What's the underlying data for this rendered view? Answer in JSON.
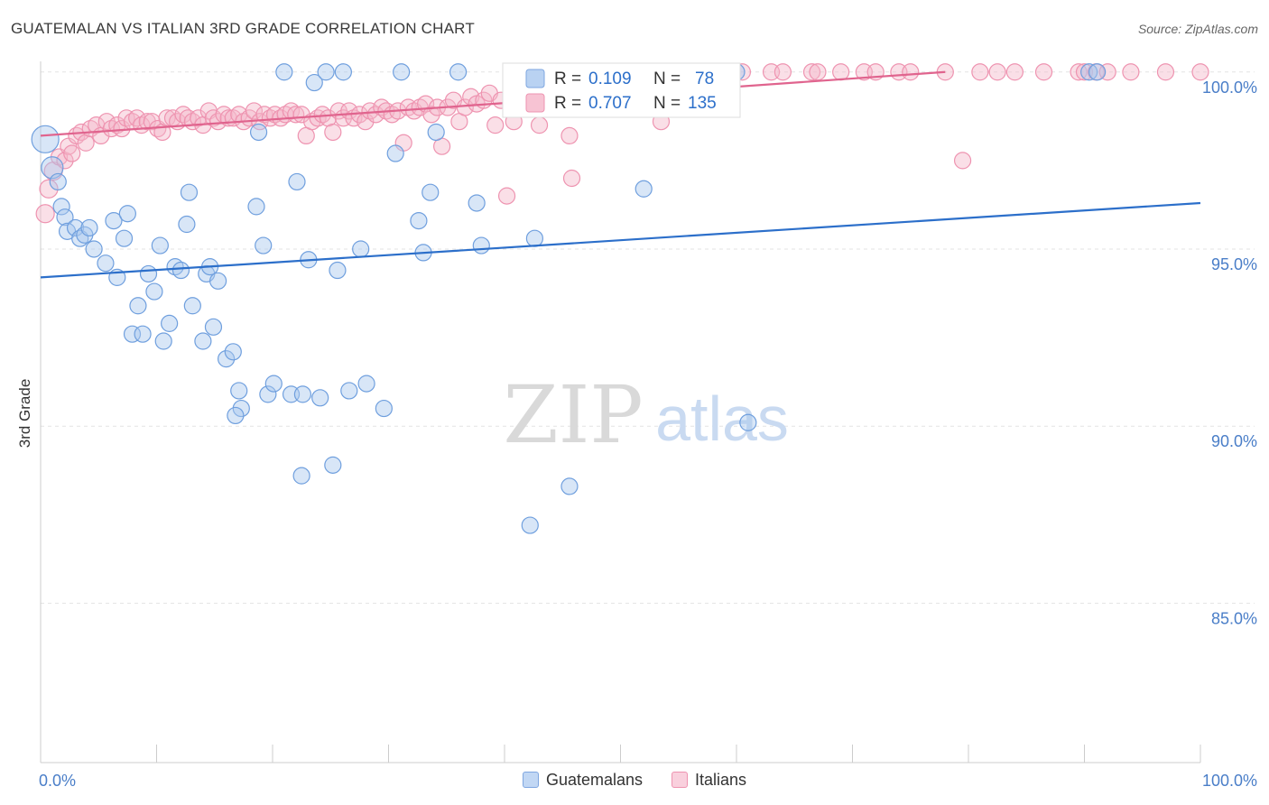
{
  "header": {
    "title": "GUATEMALAN VS ITALIAN 3RD GRADE CORRELATION CHART",
    "source": "Source: ZipAtlas.com"
  },
  "watermark": {
    "zip": "ZIP",
    "atlas": "atlas"
  },
  "legend": {
    "rows": [
      {
        "r_label": "R =",
        "r_value": "0.109",
        "n_label": "N =",
        "n_value": "78"
      },
      {
        "r_label": "R =",
        "r_value": "0.707",
        "n_label": "N =",
        "n_value": "135"
      }
    ]
  },
  "bottom_legend": {
    "items": [
      {
        "label": "Guatemalans"
      },
      {
        "label": "Italians"
      }
    ]
  },
  "colors": {
    "blue_fill": "#a9c8ee",
    "blue_stroke": "#6f9fde",
    "blue_line": "#2c6fca",
    "pink_fill": "#f5b8ca",
    "pink_stroke": "#ee93b0",
    "pink_line": "#e0648e",
    "tick_text": "#4a7ec8",
    "grid": "#e3e3e3"
  },
  "chart_data": {
    "type": "scatter",
    "title": "GUATEMALAN VS ITALIAN 3RD GRADE CORRELATION CHART",
    "ylabel": "3rd Grade",
    "xlim": [
      0,
      100
    ],
    "ylim": [
      80.5,
      100.3
    ],
    "x_ticks": [
      0,
      10,
      20,
      30,
      40,
      50,
      60,
      70,
      80,
      90,
      100
    ],
    "x_tick_labels": {
      "0": "0.0%",
      "100": "100.0%"
    },
    "y_ticks": [
      85,
      90,
      95,
      100
    ],
    "y_tick_labels": [
      "85.0%",
      "90.0%",
      "95.0%",
      "100.0%"
    ],
    "grid": true,
    "legend_position": "top-center",
    "series": [
      {
        "name": "Guatemalans",
        "r": 0.109,
        "n": 78,
        "trend": [
          [
            0,
            94.2
          ],
          [
            100,
            96.3
          ]
        ],
        "points": [
          [
            0.4,
            98.1
          ],
          [
            1.0,
            97.3
          ],
          [
            1.5,
            96.9
          ],
          [
            1.8,
            96.2
          ],
          [
            2.1,
            95.9
          ],
          [
            2.3,
            95.5
          ],
          [
            3.0,
            95.6
          ],
          [
            3.4,
            95.3
          ],
          [
            3.8,
            95.4
          ],
          [
            4.2,
            95.6
          ],
          [
            4.6,
            95.0
          ],
          [
            5.6,
            94.6
          ],
          [
            6.3,
            95.8
          ],
          [
            6.6,
            94.2
          ],
          [
            7.2,
            95.3
          ],
          [
            7.5,
            96.0
          ],
          [
            7.9,
            92.6
          ],
          [
            8.4,
            93.4
          ],
          [
            8.8,
            92.6
          ],
          [
            9.3,
            94.3
          ],
          [
            9.8,
            93.8
          ],
          [
            10.3,
            95.1
          ],
          [
            10.6,
            92.4
          ],
          [
            11.1,
            92.9
          ],
          [
            11.6,
            94.5
          ],
          [
            12.1,
            94.4
          ],
          [
            12.6,
            95.7
          ],
          [
            12.8,
            96.6
          ],
          [
            13.1,
            93.4
          ],
          [
            14.0,
            92.4
          ],
          [
            14.3,
            94.3
          ],
          [
            14.6,
            94.5
          ],
          [
            14.9,
            92.8
          ],
          [
            15.3,
            94.1
          ],
          [
            16.0,
            91.9
          ],
          [
            16.6,
            92.1
          ],
          [
            17.1,
            91.0
          ],
          [
            17.3,
            90.5
          ],
          [
            16.8,
            90.3
          ],
          [
            18.6,
            96.2
          ],
          [
            18.8,
            98.3
          ],
          [
            19.2,
            95.1
          ],
          [
            19.6,
            90.9
          ],
          [
            20.1,
            91.2
          ],
          [
            21.0,
            100.0
          ],
          [
            21.6,
            90.9
          ],
          [
            22.1,
            96.9
          ],
          [
            22.6,
            90.9
          ],
          [
            23.1,
            94.7
          ],
          [
            23.6,
            99.7
          ],
          [
            24.1,
            90.8
          ],
          [
            24.6,
            100.0
          ],
          [
            25.2,
            88.9
          ],
          [
            25.6,
            94.4
          ],
          [
            26.1,
            100.0
          ],
          [
            26.6,
            91.0
          ],
          [
            27.6,
            95.0
          ],
          [
            28.1,
            91.2
          ],
          [
            29.6,
            90.5
          ],
          [
            30.6,
            97.7
          ],
          [
            31.1,
            100.0
          ],
          [
            32.6,
            95.8
          ],
          [
            33.0,
            94.9
          ],
          [
            33.6,
            96.6
          ],
          [
            34.1,
            98.3
          ],
          [
            36.0,
            100.0
          ],
          [
            37.6,
            96.3
          ],
          [
            38.0,
            95.1
          ],
          [
            42.6,
            95.3
          ],
          [
            42.2,
            87.2
          ],
          [
            45.6,
            88.3
          ],
          [
            52.0,
            96.7
          ],
          [
            59.0,
            100.0
          ],
          [
            60.0,
            100.0
          ],
          [
            61.0,
            90.1
          ],
          [
            22.5,
            88.6
          ],
          [
            90.4,
            100.0
          ],
          [
            91.1,
            100.0
          ]
        ]
      },
      {
        "name": "Italians",
        "r": 0.707,
        "n": 135,
        "trend": [
          [
            0,
            98.2
          ],
          [
            78,
            100.0
          ]
        ],
        "points": [
          [
            0.4,
            96.0
          ],
          [
            0.7,
            96.7
          ],
          [
            1.1,
            97.2
          ],
          [
            1.6,
            97.6
          ],
          [
            2.1,
            97.5
          ],
          [
            2.4,
            97.9
          ],
          [
            2.7,
            97.7
          ],
          [
            3.1,
            98.2
          ],
          [
            3.5,
            98.3
          ],
          [
            3.9,
            98.0
          ],
          [
            4.3,
            98.4
          ],
          [
            4.8,
            98.5
          ],
          [
            5.2,
            98.2
          ],
          [
            5.7,
            98.6
          ],
          [
            6.1,
            98.4
          ],
          [
            6.6,
            98.5
          ],
          [
            7.0,
            98.4
          ],
          [
            7.4,
            98.7
          ],
          [
            7.9,
            98.6
          ],
          [
            8.3,
            98.7
          ],
          [
            8.7,
            98.5
          ],
          [
            9.2,
            98.6
          ],
          [
            9.6,
            98.6
          ],
          [
            10.1,
            98.4
          ],
          [
            10.5,
            98.3
          ],
          [
            10.9,
            98.7
          ],
          [
            11.4,
            98.7
          ],
          [
            11.8,
            98.6
          ],
          [
            12.3,
            98.8
          ],
          [
            12.7,
            98.7
          ],
          [
            13.1,
            98.6
          ],
          [
            13.6,
            98.7
          ],
          [
            14.0,
            98.5
          ],
          [
            14.5,
            98.9
          ],
          [
            14.9,
            98.7
          ],
          [
            15.3,
            98.6
          ],
          [
            15.8,
            98.8
          ],
          [
            16.2,
            98.7
          ],
          [
            16.6,
            98.7
          ],
          [
            17.1,
            98.8
          ],
          [
            17.5,
            98.6
          ],
          [
            18.0,
            98.7
          ],
          [
            18.4,
            98.9
          ],
          [
            18.9,
            98.6
          ],
          [
            19.3,
            98.8
          ],
          [
            19.8,
            98.7
          ],
          [
            20.2,
            98.8
          ],
          [
            20.7,
            98.7
          ],
          [
            21.1,
            98.8
          ],
          [
            21.6,
            98.9
          ],
          [
            22.0,
            98.8
          ],
          [
            22.5,
            98.8
          ],
          [
            22.9,
            98.2
          ],
          [
            23.4,
            98.6
          ],
          [
            23.9,
            98.7
          ],
          [
            24.3,
            98.8
          ],
          [
            24.8,
            98.7
          ],
          [
            25.2,
            98.3
          ],
          [
            25.7,
            98.9
          ],
          [
            26.1,
            98.7
          ],
          [
            26.6,
            98.9
          ],
          [
            27.0,
            98.7
          ],
          [
            27.5,
            98.8
          ],
          [
            28.0,
            98.6
          ],
          [
            28.4,
            98.9
          ],
          [
            28.9,
            98.8
          ],
          [
            29.4,
            99.0
          ],
          [
            29.8,
            98.9
          ],
          [
            30.3,
            98.8
          ],
          [
            30.8,
            98.9
          ],
          [
            31.3,
            98.0
          ],
          [
            31.7,
            99.0
          ],
          [
            32.2,
            98.9
          ],
          [
            32.7,
            99.0
          ],
          [
            33.2,
            99.1
          ],
          [
            33.7,
            98.8
          ],
          [
            34.2,
            99.0
          ],
          [
            34.6,
            97.9
          ],
          [
            35.1,
            99.0
          ],
          [
            35.6,
            99.2
          ],
          [
            36.1,
            98.6
          ],
          [
            36.6,
            99.0
          ],
          [
            37.1,
            99.3
          ],
          [
            37.6,
            99.1
          ],
          [
            38.2,
            99.2
          ],
          [
            38.7,
            99.4
          ],
          [
            39.2,
            98.5
          ],
          [
            39.7,
            99.2
          ],
          [
            40.2,
            96.5
          ],
          [
            40.8,
            98.6
          ],
          [
            41.3,
            99.5
          ],
          [
            41.8,
            99.1
          ],
          [
            42.4,
            99.5
          ],
          [
            43.0,
            98.5
          ],
          [
            43.5,
            99.5
          ],
          [
            44.0,
            99.6
          ],
          [
            45.0,
            99.7
          ],
          [
            45.6,
            98.2
          ],
          [
            45.8,
            97.0
          ],
          [
            46.5,
            99.8
          ],
          [
            47.2,
            99.8
          ],
          [
            48.0,
            99.7
          ],
          [
            49.0,
            99.8
          ],
          [
            50.0,
            99.9
          ],
          [
            51.0,
            100.0
          ],
          [
            53.0,
            100.0
          ],
          [
            55.5,
            100.0
          ],
          [
            56.5,
            100.0
          ],
          [
            58.0,
            100.0
          ],
          [
            63.0,
            100.0
          ],
          [
            64.0,
            100.0
          ],
          [
            66.5,
            100.0
          ],
          [
            67.0,
            100.0
          ],
          [
            69.0,
            100.0
          ],
          [
            71.0,
            100.0
          ],
          [
            72.0,
            100.0
          ],
          [
            74.0,
            100.0
          ],
          [
            75.0,
            100.0
          ],
          [
            78.0,
            100.0
          ],
          [
            79.5,
            97.5
          ],
          [
            81.0,
            100.0
          ],
          [
            82.5,
            100.0
          ],
          [
            84.0,
            100.0
          ],
          [
            86.5,
            100.0
          ],
          [
            89.5,
            100.0
          ],
          [
            90.0,
            100.0
          ],
          [
            91.0,
            100.0
          ],
          [
            92.0,
            100.0
          ],
          [
            94.0,
            100.0
          ],
          [
            97.0,
            100.0
          ],
          [
            100.0,
            100.0
          ],
          [
            53.5,
            98.6
          ],
          [
            46.0,
            99.9
          ],
          [
            57.0,
            99.9
          ],
          [
            60.5,
            100.0
          ]
        ]
      }
    ]
  }
}
